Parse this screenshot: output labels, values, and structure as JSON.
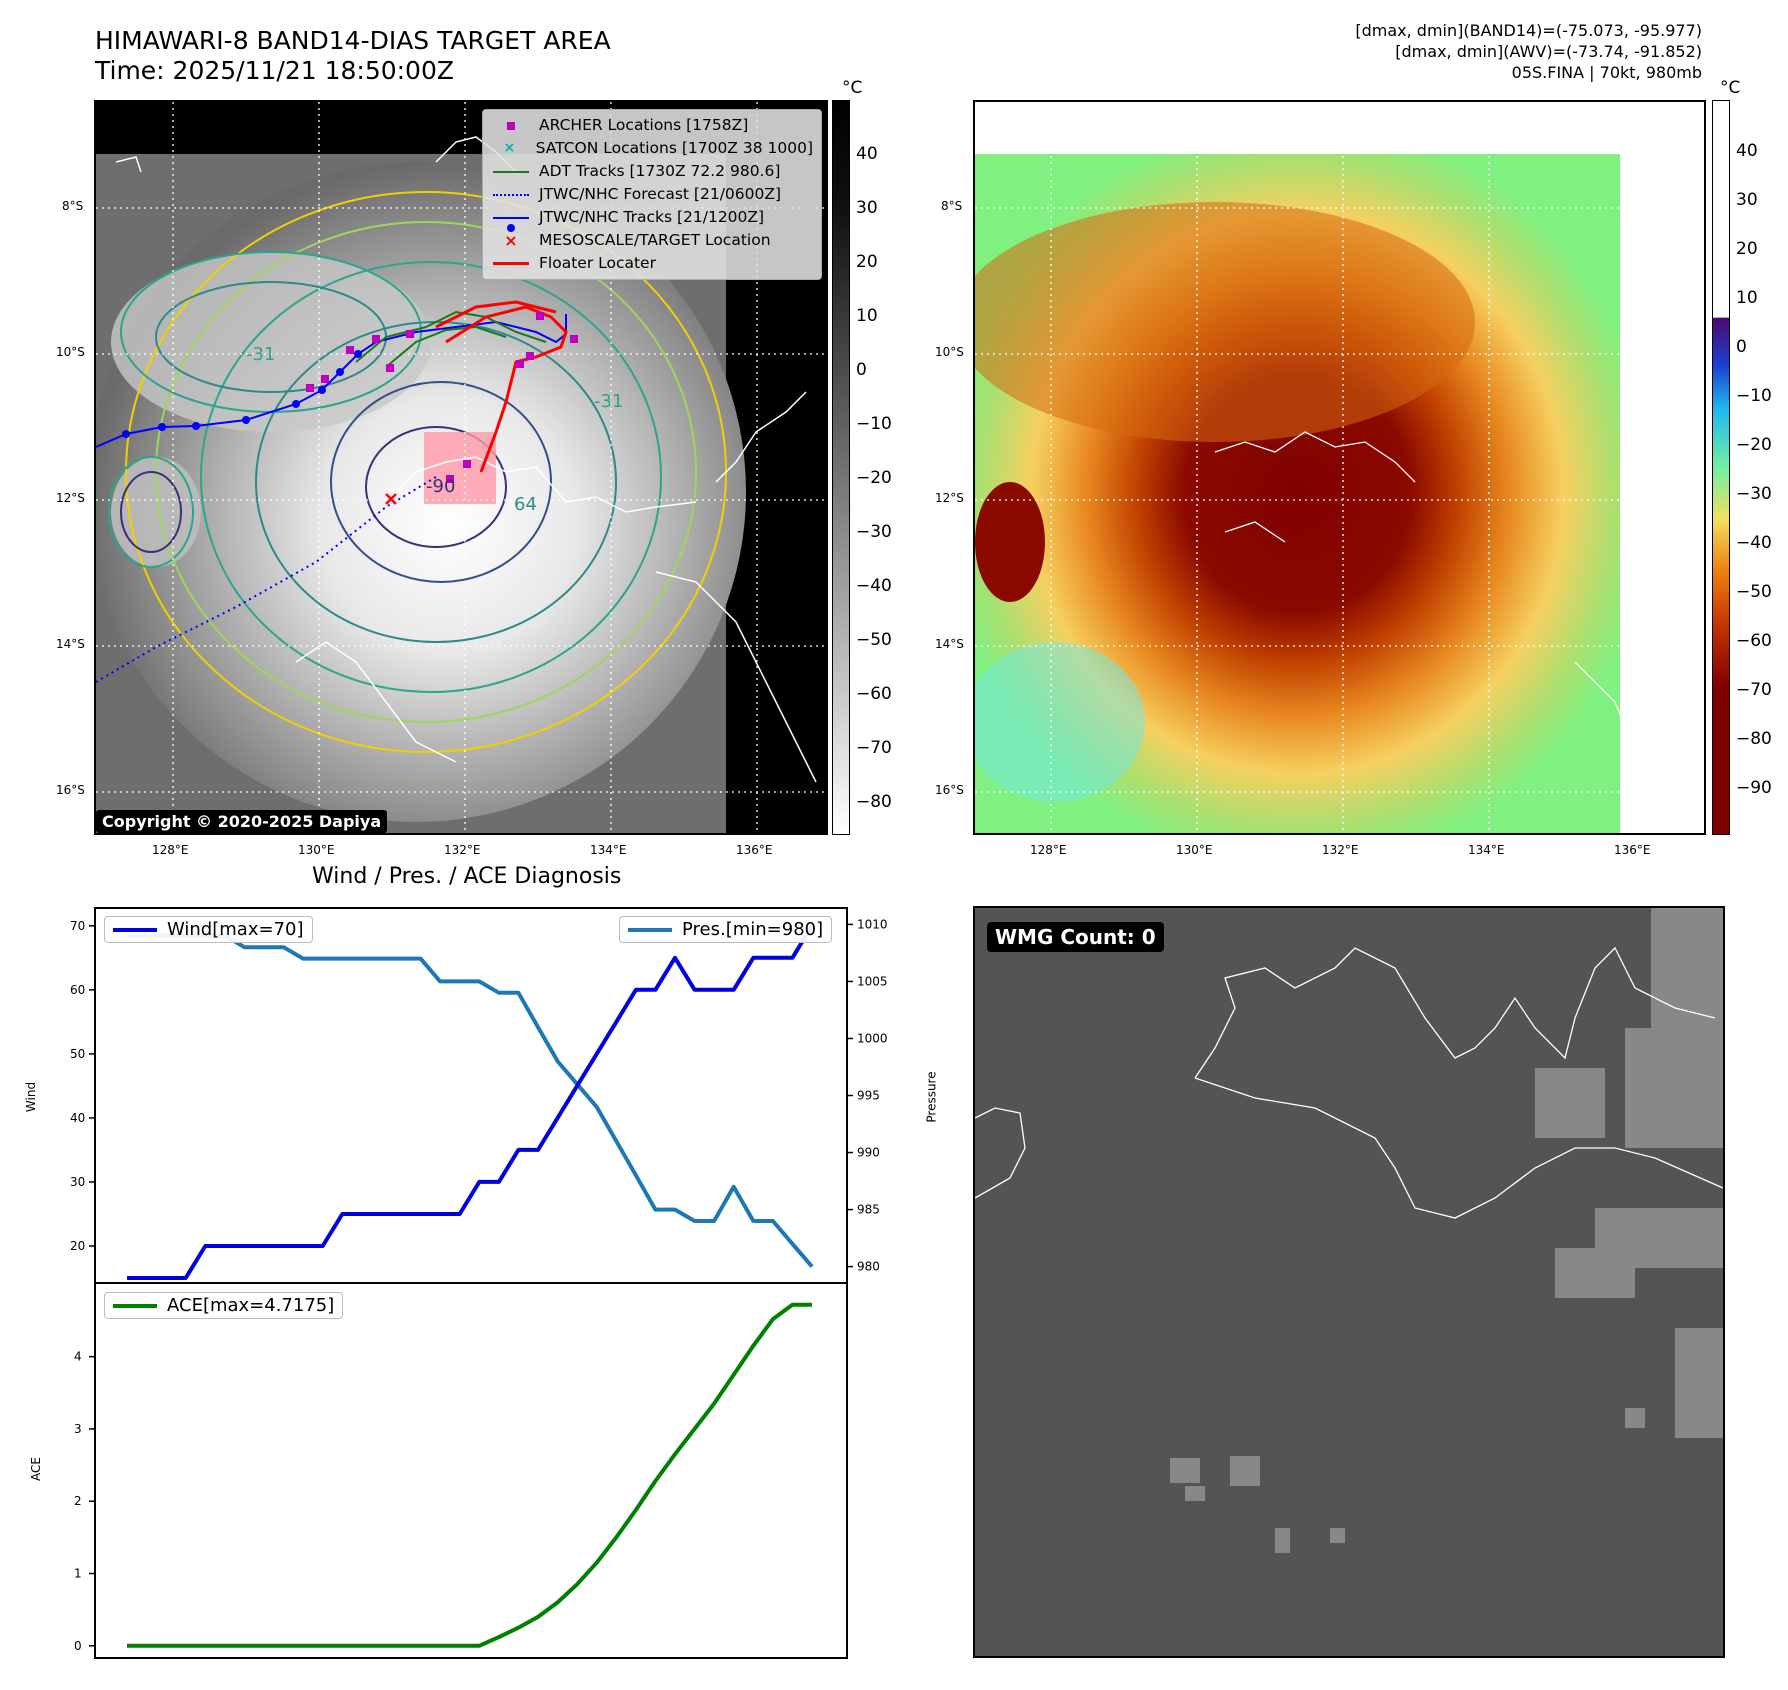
{
  "header": {
    "title_line1": "HIMAWARI-8 BAND14-DIAS TARGET AREA",
    "title_line2": "Time: 2025/11/21 18:50:00Z",
    "right_line1": "[dmax, dmin](BAND14)=(-75.073, -95.977)",
    "right_line2": "[dmax, dmin](AWV)=(-73.74, -91.852)",
    "right_line3": "05S.FINA | 70kt, 980mb"
  },
  "map_axes": {
    "lat_labels": [
      "8°S",
      "10°S",
      "12°S",
      "14°S",
      "16°S"
    ],
    "lon_labels": [
      "128°E",
      "130°E",
      "132°E",
      "134°E",
      "136°E"
    ]
  },
  "left_map": {
    "legend": [
      {
        "label": "ARCHER Locations [1758Z]",
        "marker": "square",
        "color": "#c000c0"
      },
      {
        "label": "SATCON Locations [1700Z 38 1000]",
        "marker": "x",
        "color": "#00b0b0"
      },
      {
        "label": "ADT Tracks [1730Z 72.2 980.6]",
        "marker": "line",
        "color": "#1a7a1a"
      },
      {
        "label": "JTWC/NHC Forecast [21/0600Z]",
        "marker": "dotted",
        "color": "#0000ff"
      },
      {
        "label": "JTWC/NHC Tracks [21/1200Z]",
        "marker": "line-dot",
        "color": "#0000ff"
      },
      {
        "label": "MESOSCALE/TARGET Location",
        "marker": "x",
        "color": "#ff0000"
      },
      {
        "label": "Floater Locater",
        "marker": "line",
        "color": "#ff0000"
      }
    ],
    "copyright": "Copyright © 2020-2025 Dapiya",
    "contour_labels": [
      "-31",
      "64",
      "-90",
      "-31"
    ],
    "colorbar": {
      "unit": "°C",
      "ticks": [
        "40",
        "30",
        "20",
        "10",
        "0",
        "−10",
        "−20",
        "−30",
        "−40",
        "−50",
        "−60",
        "−70",
        "−80"
      ]
    }
  },
  "right_map": {
    "colorbar": {
      "unit": "°C",
      "ticks": [
        "40",
        "30",
        "20",
        "10",
        "0",
        "−10",
        "−20",
        "−30",
        "−40",
        "−50",
        "−60",
        "−70",
        "−80",
        "−90"
      ]
    }
  },
  "diagnosis": {
    "title": "Wind / Pres. / ACE Diagnosis",
    "wind_ylabel": "Wind",
    "pres_ylabel": "Pressure",
    "ace_ylabel": "ACE",
    "wind_legend": "Wind[max=70]",
    "pres_legend": "Pres.[min=980]",
    "ace_legend": "ACE[max=4.7175]",
    "wind_ticks": [
      "70",
      "60",
      "50",
      "40",
      "30",
      "20"
    ],
    "pres_ticks": [
      "1010",
      "1005",
      "1000",
      "995",
      "990",
      "985",
      "980"
    ],
    "ace_ticks": [
      "4",
      "3",
      "2",
      "1",
      "0"
    ]
  },
  "wmg": {
    "label": "WMG Count: 0"
  },
  "chart_data": [
    {
      "type": "line",
      "title": "Wind / Pres. / ACE Diagnosis",
      "x": [
        0,
        1,
        2,
        3,
        4,
        5,
        6,
        7,
        8,
        9,
        10,
        11,
        12,
        13,
        14,
        15,
        16,
        17,
        18,
        19,
        20,
        21,
        22,
        23,
        24,
        25,
        26,
        27,
        28,
        29,
        30,
        31,
        32,
        33,
        34,
        35
      ],
      "series": [
        {
          "name": "Wind[max=70]",
          "color": "#0000e0",
          "axis": "left",
          "values": [
            15,
            15,
            15,
            15,
            20,
            20,
            20,
            20,
            20,
            20,
            20,
            25,
            25,
            25,
            25,
            25,
            25,
            25,
            30,
            30,
            35,
            35,
            40,
            45,
            50,
            55,
            60,
            60,
            65,
            60,
            60,
            60,
            65,
            65,
            65,
            70
          ]
        },
        {
          "name": "Pres.[min=980]",
          "color": "#1f77b4",
          "axis": "right",
          "values": [
            1009,
            1009,
            1009,
            1009,
            1009,
            1009,
            1008,
            1008,
            1008,
            1007,
            1007,
            1007,
            1007,
            1007,
            1007,
            1007,
            1005,
            1005,
            1005,
            1004,
            1004,
            1001,
            998,
            996,
            994,
            991,
            988,
            985,
            985,
            984,
            984,
            987,
            984,
            984,
            982,
            980
          ]
        }
      ],
      "ylim_left": [
        15,
        72
      ],
      "ylim_right": [
        979,
        1011
      ]
    },
    {
      "type": "line",
      "series": [
        {
          "name": "ACE[max=4.7175]",
          "color": "#008000",
          "values": [
            0,
            0,
            0,
            0,
            0,
            0,
            0,
            0,
            0,
            0,
            0,
            0,
            0,
            0,
            0,
            0,
            0,
            0,
            0,
            0.12,
            0.25,
            0.4,
            0.6,
            0.85,
            1.15,
            1.5,
            1.88,
            2.28,
            2.65,
            3.0,
            3.35,
            3.75,
            4.15,
            4.52,
            4.7175,
            4.7175
          ]
        }
      ],
      "ylim": [
        -0.1,
        4.95
      ]
    }
  ],
  "colors": {
    "bt_track": "#0000ff",
    "adt": "#1a7a1a",
    "archer": "#c000c0",
    "floater": "#ff0000",
    "wind_line": "#0000e0",
    "pres_line": "#1f77b4",
    "ace_line": "#008000"
  }
}
